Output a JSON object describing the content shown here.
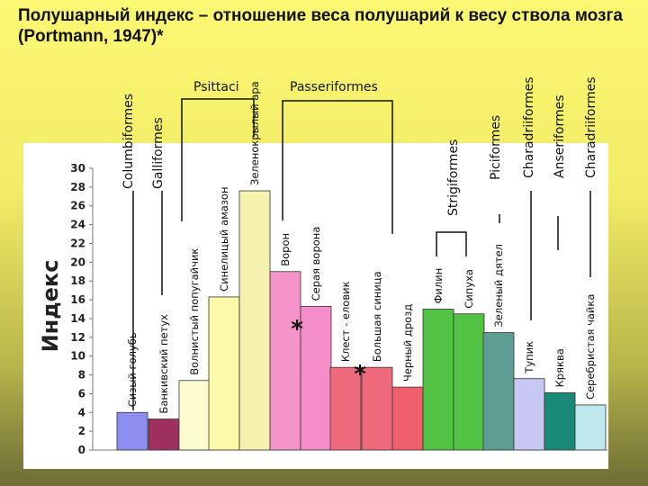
{
  "title": "Полушарный индекс – отношение веса полушарий к весу ствола мозга (Portmann, 1947)*",
  "chart_data": {
    "type": "bar",
    "title": "Полушарный индекс – отношение веса полушарий к весу ствола мозга (Portmann, 1947)*",
    "ylabel": "Индекс",
    "xlabel": "",
    "ylim": [
      0,
      30
    ],
    "yticks": [
      0,
      2,
      4,
      6,
      8,
      10,
      12,
      14,
      16,
      18,
      20,
      22,
      24,
      26,
      28,
      30
    ],
    "grid": false,
    "categories": [
      "Сизый голубь",
      "Банкивский петух",
      "Волнистый попугайчик",
      "Синелицый амазон",
      "Зеленокрылый ара",
      "Ворон",
      "Серая ворона",
      "Клест - еловик",
      "Большая синица",
      "Черный дрозд",
      "Филин",
      "Сипуха",
      "Зеленый дятел",
      "Тупик",
      "Кряква",
      "Серебристая чайка"
    ],
    "values": [
      4.0,
      3.3,
      7.4,
      16.3,
      27.6,
      19.0,
      15.3,
      8.8,
      8.8,
      6.7,
      15.0,
      14.5,
      12.5,
      7.6,
      6.1,
      4.8
    ],
    "colors": [
      "#8e8ef0",
      "#9e3060",
      "#fcfcd0",
      "#fafaa8",
      "#f5f2b0",
      "#f594c8",
      "#f58ec8",
      "#ee6a7a",
      "#ee6a7a",
      "#f0606c",
      "#52c244",
      "#52c244",
      "#5e9e92",
      "#c8c8f4",
      "#1a8a78",
      "#bfe8ee"
    ],
    "groups": [
      "Columbiformes",
      "Galliformes",
      "Psittaci",
      "Passeriformes",
      "Strigiformes",
      "Piciformes",
      "Charadriiformes",
      "Anseriformes",
      "Charadriiformes"
    ],
    "annotations": [
      "*",
      "*"
    ]
  }
}
